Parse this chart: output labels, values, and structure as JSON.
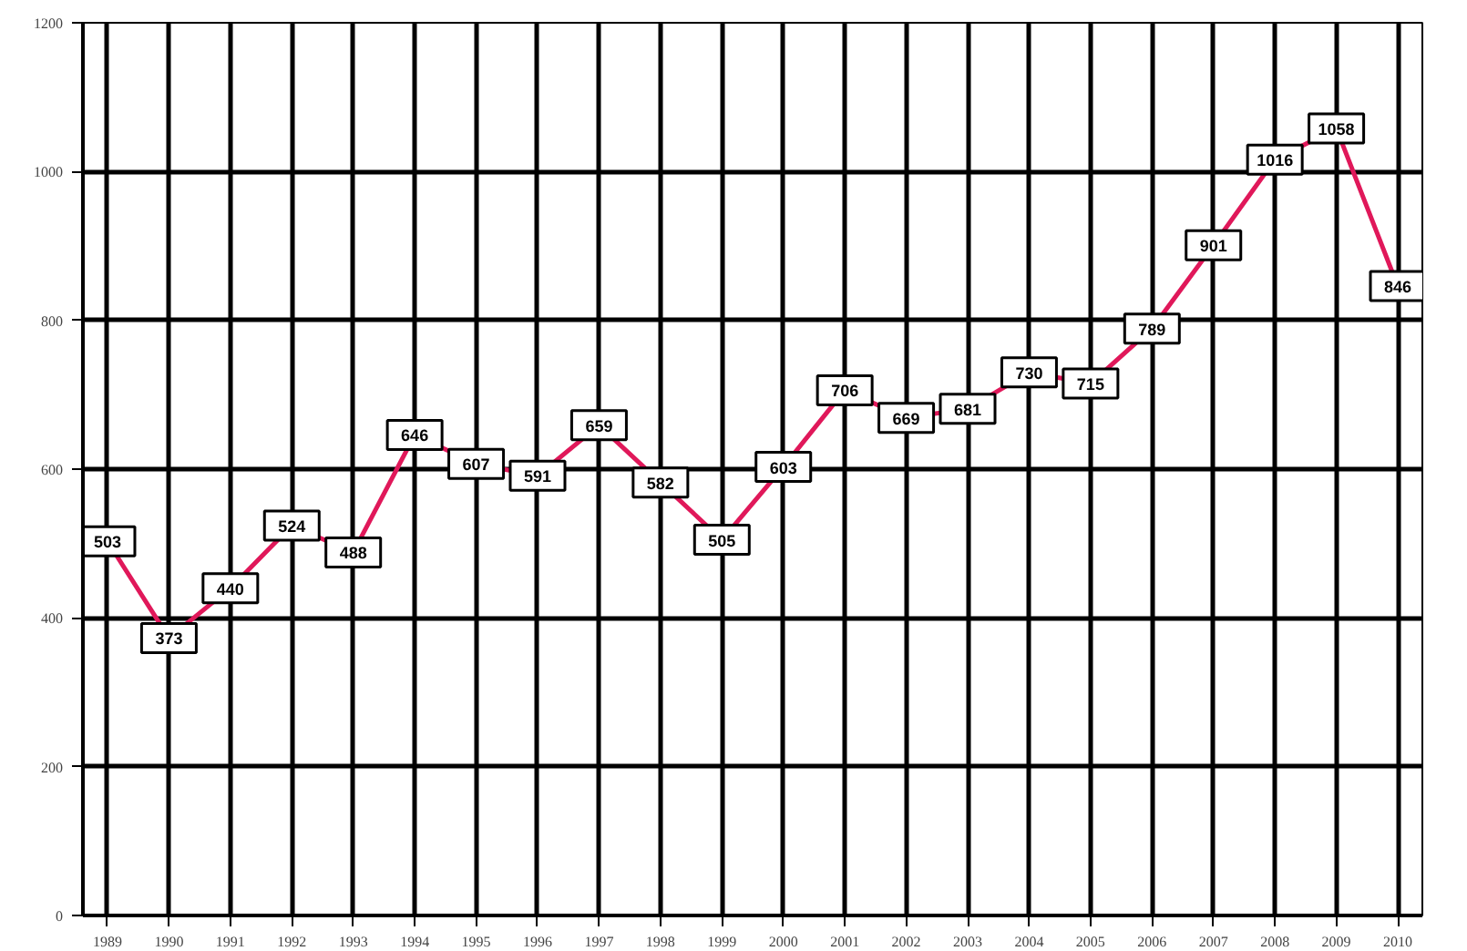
{
  "chart_data": {
    "type": "line",
    "x": [
      1989,
      1990,
      1991,
      1992,
      1993,
      1994,
      1995,
      1996,
      1997,
      1998,
      1999,
      2000,
      2001,
      2002,
      2003,
      2004,
      2005,
      2006,
      2007,
      2008,
      2009,
      2010
    ],
    "series": [
      {
        "color": "#e0185a",
        "values": [
          503,
          373,
          440,
          524,
          488,
          646,
          607,
          591,
          659,
          582,
          505,
          603,
          706,
          669,
          681,
          730,
          715,
          789,
          901,
          1016,
          1058,
          846
        ]
      }
    ],
    "xlim": [
      1988.6,
      2010.4
    ],
    "xticks": [
      1989,
      1990,
      1991,
      1992,
      1993,
      1994,
      1995,
      1996,
      1997,
      1998,
      1999,
      2000,
      2001,
      2002,
      2003,
      2004,
      2005,
      2006,
      2007,
      2008,
      2009,
      2010
    ],
    "ylim": [
      0,
      1200
    ],
    "yticks": [
      0,
      200,
      400,
      600,
      800,
      1000,
      1200
    ],
    "grid": true,
    "data_labels": true,
    "marker": "square",
    "line_style": "solid"
  }
}
